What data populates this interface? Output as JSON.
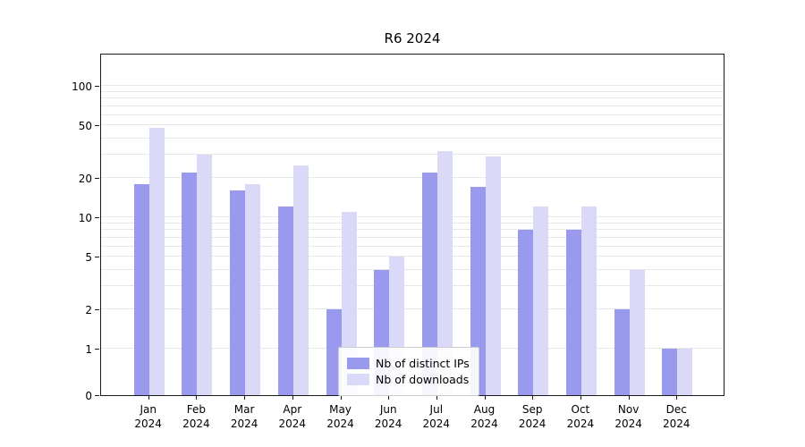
{
  "chart_data": {
    "type": "bar",
    "title": "R6 2024",
    "categories": [
      "Jan 2024",
      "Feb 2024",
      "Mar 2024",
      "Apr 2024",
      "May 2024",
      "Jun 2024",
      "Jul 2024",
      "Aug 2024",
      "Sep 2024",
      "Oct 2024",
      "Nov 2024",
      "Dec 2024"
    ],
    "series": [
      {
        "name": "Nb of distinct IPs",
        "color": "#9999ee",
        "values": [
          18,
          22,
          16,
          12,
          2,
          4,
          22,
          17,
          8,
          8,
          2,
          1
        ]
      },
      {
        "name": "Nb of downloads",
        "color": "#dadaf8",
        "values": [
          48,
          30,
          18,
          25,
          11,
          5,
          32,
          29,
          12,
          12,
          4,
          1
        ]
      }
    ],
    "y_axis": {
      "scale": "symlog",
      "range": [
        0,
        100
      ],
      "major_ticks": [
        0,
        1,
        2,
        5,
        10,
        20,
        50,
        100
      ],
      "minor_gridlines": [
        1,
        2,
        3,
        4,
        5,
        6,
        7,
        8,
        9,
        10,
        20,
        30,
        40,
        50,
        60,
        70,
        80,
        90,
        100
      ]
    },
    "grid": "horizontal",
    "legend_position": "lower-center"
  }
}
